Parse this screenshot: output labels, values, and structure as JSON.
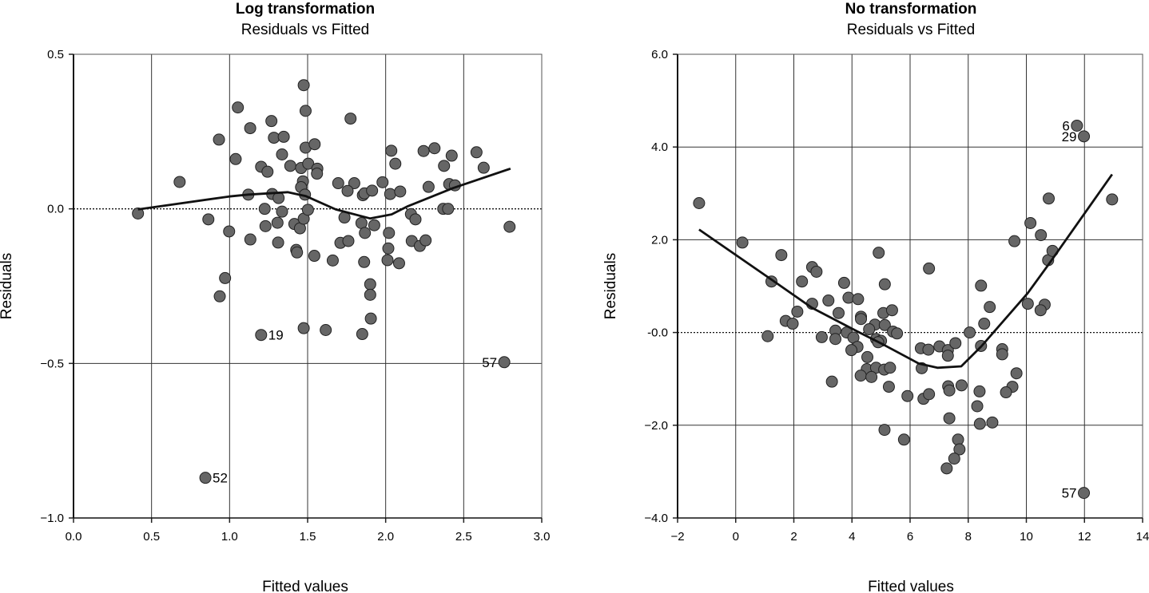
{
  "chart_data": [
    {
      "type": "scatter",
      "title": "Log transformation",
      "subtitle": "Residuals vs Fitted",
      "xlabel": "Fitted values",
      "ylabel": "Residuals",
      "xlim": [
        0,
        3
      ],
      "ylim": [
        -1,
        0.5
      ],
      "xticks": [
        0,
        0.5,
        1,
        1.5,
        2,
        2.5,
        3
      ],
      "xtick_labels": [
        "0.0",
        "0.5",
        "1.0",
        "1.5",
        "2.0",
        "2.5",
        "3.0"
      ],
      "yticks": [
        0.5,
        0,
        -0.5,
        -1
      ],
      "ytick_labels": [
        "0.5",
        "0.0",
        "−0.5",
        "−1.0"
      ],
      "grid": true,
      "reference_line": 0,
      "points": [
        [
          0.413,
          -0.015
        ],
        [
          0.68,
          0.087
        ],
        [
          0.932,
          0.224
        ],
        [
          0.864,
          -0.034
        ],
        [
          0.997,
          -0.073
        ],
        [
          0.971,
          -0.224
        ],
        [
          0.937,
          -0.283
        ],
        [
          1.053,
          0.328
        ],
        [
          1.132,
          0.261
        ],
        [
          1.039,
          0.161
        ],
        [
          1.12,
          0.046
        ],
        [
          1.133,
          -0.099
        ],
        [
          1.202,
          0.136
        ],
        [
          1.243,
          0.12
        ],
        [
          1.268,
          0.284
        ],
        [
          1.284,
          0.23
        ],
        [
          1.347,
          0.233
        ],
        [
          1.336,
          0.176
        ],
        [
          1.389,
          0.139
        ],
        [
          1.273,
          0.048
        ],
        [
          1.314,
          0.035
        ],
        [
          1.225,
          0.0
        ],
        [
          1.336,
          -0.009
        ],
        [
          1.23,
          -0.056
        ],
        [
          1.307,
          -0.045
        ],
        [
          1.311,
          -0.109
        ],
        [
          1.415,
          -0.049
        ],
        [
          1.451,
          -0.063
        ],
        [
          1.475,
          -0.032
        ],
        [
          1.427,
          -0.133
        ],
        [
          1.432,
          -0.141
        ],
        [
          1.543,
          -0.152
        ],
        [
          1.458,
          0.132
        ],
        [
          1.487,
          0.198
        ],
        [
          1.545,
          0.209
        ],
        [
          1.504,
          0.146
        ],
        [
          1.562,
          0.13
        ],
        [
          1.56,
          0.114
        ],
        [
          1.47,
          0.089
        ],
        [
          1.458,
          0.07
        ],
        [
          1.483,
          0.046
        ],
        [
          1.502,
          -0.003
        ],
        [
          1.475,
          0.4
        ],
        [
          1.487,
          0.317
        ],
        [
          1.775,
          0.292
        ],
        [
          1.696,
          0.083
        ],
        [
          1.799,
          0.083
        ],
        [
          1.756,
          0.058
        ],
        [
          1.854,
          0.044
        ],
        [
          1.864,
          0.05
        ],
        [
          1.913,
          0.059
        ],
        [
          1.98,
          0.086
        ],
        [
          2.036,
          0.188
        ],
        [
          2.062,
          0.146
        ],
        [
          2.029,
          0.048
        ],
        [
          2.093,
          0.056
        ],
        [
          1.736,
          -0.028
        ],
        [
          1.845,
          -0.046
        ],
        [
          1.927,
          -0.053
        ],
        [
          1.867,
          -0.078
        ],
        [
          1.71,
          -0.11
        ],
        [
          1.761,
          -0.104
        ],
        [
          1.661,
          -0.167
        ],
        [
          1.862,
          -0.172
        ],
        [
          2.021,
          -0.078
        ],
        [
          2.017,
          -0.128
        ],
        [
          2.012,
          -0.166
        ],
        [
          2.086,
          -0.176
        ],
        [
          1.901,
          -0.244
        ],
        [
          1.901,
          -0.278
        ],
        [
          1.905,
          -0.355
        ],
        [
          1.85,
          -0.405
        ],
        [
          1.616,
          -0.392
        ],
        [
          1.475,
          -0.386
        ],
        [
          2.162,
          -0.017
        ],
        [
          2.191,
          -0.034
        ],
        [
          2.167,
          -0.104
        ],
        [
          2.219,
          -0.12
        ],
        [
          2.256,
          -0.102
        ],
        [
          2.275,
          0.071
        ],
        [
          2.243,
          0.187
        ],
        [
          2.313,
          0.196
        ],
        [
          2.374,
          0.139
        ],
        [
          2.423,
          0.172
        ],
        [
          2.407,
          0.08
        ],
        [
          2.444,
          0.076
        ],
        [
          2.369,
          0.0
        ],
        [
          2.4,
          0.0
        ],
        [
          2.582,
          0.183
        ],
        [
          2.628,
          0.133
        ],
        [
          2.794,
          -0.058
        ]
      ],
      "labeled_points": [
        {
          "label": "19",
          "x": 1.202,
          "y": -0.408,
          "side": "right"
        },
        {
          "label": "52",
          "x": 0.845,
          "y": -0.87,
          "side": "right"
        },
        {
          "label": "57",
          "x": 2.76,
          "y": -0.496,
          "side": "left"
        }
      ],
      "smooth_line": [
        [
          0.413,
          -0.002
        ],
        [
          0.997,
          0.04
        ],
        [
          1.12,
          0.046
        ],
        [
          1.372,
          0.054
        ],
        [
          1.49,
          0.041
        ],
        [
          1.68,
          -0.002
        ],
        [
          1.9,
          -0.031
        ],
        [
          2.038,
          -0.018
        ],
        [
          2.14,
          0.008
        ],
        [
          2.431,
          0.067
        ],
        [
          2.8,
          0.13
        ]
      ]
    },
    {
      "type": "scatter",
      "title": "No transformation",
      "subtitle": "Residuals vs Fitted",
      "xlabel": "Fitted values",
      "ylabel": "Residuals",
      "xlim": [
        -2,
        14
      ],
      "ylim": [
        -4,
        6
      ],
      "xticks": [
        -2,
        0,
        2,
        4,
        6,
        8,
        10,
        12,
        14
      ],
      "xtick_labels": [
        "−2",
        "0",
        "2",
        "4",
        "6",
        "8",
        "10",
        "12",
        "14"
      ],
      "yticks": [
        6,
        4,
        2,
        0,
        -2,
        -4
      ],
      "ytick_labels": [
        "6.0",
        "4.0",
        "2.0",
        "-0.0",
        "−2.0",
        "−4.0"
      ],
      "grid": true,
      "reference_line": 0,
      "points": [
        [
          0.23,
          1.94
        ],
        [
          1.57,
          1.67
        ],
        [
          1.23,
          1.1
        ],
        [
          2.28,
          1.1
        ],
        [
          2.63,
          1.41
        ],
        [
          2.78,
          1.31
        ],
        [
          2.63,
          0.62
        ],
        [
          2.12,
          0.45
        ],
        [
          1.72,
          0.25
        ],
        [
          1.96,
          0.19
        ],
        [
          1.1,
          -0.08
        ],
        [
          3.19,
          0.69
        ],
        [
          3.73,
          1.07
        ],
        [
          3.88,
          0.75
        ],
        [
          4.21,
          0.72
        ],
        [
          3.54,
          0.42
        ],
        [
          4.31,
          0.34
        ],
        [
          4.31,
          0.29
        ],
        [
          4.92,
          1.72
        ],
        [
          5.13,
          1.04
        ],
        [
          5.08,
          0.42
        ],
        [
          5.38,
          0.48
        ],
        [
          4.79,
          0.17
        ],
        [
          5.13,
          0.16
        ],
        [
          4.59,
          0.07
        ],
        [
          5.41,
          0.02
        ],
        [
          5.55,
          -0.02
        ],
        [
          3.43,
          0.04
        ],
        [
          3.43,
          -0.14
        ],
        [
          2.96,
          -0.1
        ],
        [
          3.82,
          0.0
        ],
        [
          4.05,
          -0.11
        ],
        [
          4.83,
          -0.14
        ],
        [
          5.0,
          -0.18
        ],
        [
          4.9,
          -0.21
        ],
        [
          4.19,
          -0.31
        ],
        [
          3.98,
          -0.38
        ],
        [
          4.53,
          -0.53
        ],
        [
          4.51,
          -0.79
        ],
        [
          4.83,
          -0.76
        ],
        [
          5.11,
          -0.8
        ],
        [
          5.31,
          -0.76
        ],
        [
          4.3,
          -0.93
        ],
        [
          4.67,
          -0.96
        ],
        [
          3.31,
          -1.06
        ],
        [
          5.27,
          -1.17
        ],
        [
          5.91,
          -1.37
        ],
        [
          6.46,
          -1.43
        ],
        [
          6.65,
          -1.33
        ],
        [
          6.4,
          -0.77
        ],
        [
          6.37,
          -0.34
        ],
        [
          6.63,
          -0.37
        ],
        [
          7.01,
          -0.3
        ],
        [
          7.3,
          -0.38
        ],
        [
          7.3,
          -0.5
        ],
        [
          7.56,
          -0.23
        ],
        [
          8.05,
          0.0
        ],
        [
          6.65,
          1.38
        ],
        [
          8.44,
          1.01
        ],
        [
          8.74,
          0.55
        ],
        [
          8.55,
          0.19
        ],
        [
          8.44,
          -0.29
        ],
        [
          9.17,
          -0.36
        ],
        [
          9.17,
          -0.47
        ],
        [
          9.66,
          -0.88
        ],
        [
          9.52,
          -1.17
        ],
        [
          9.3,
          -1.29
        ],
        [
          8.39,
          -1.27
        ],
        [
          8.31,
          -1.59
        ],
        [
          8.4,
          -1.97
        ],
        [
          8.83,
          -1.94
        ],
        [
          7.77,
          -1.14
        ],
        [
          7.31,
          -1.16
        ],
        [
          7.35,
          -1.25
        ],
        [
          7.35,
          -1.85
        ],
        [
          7.65,
          -2.31
        ],
        [
          7.7,
          -2.52
        ],
        [
          7.52,
          -2.72
        ],
        [
          7.26,
          -2.93
        ],
        [
          5.79,
          -2.31
        ],
        [
          5.12,
          -2.1
        ],
        [
          10.05,
          0.62
        ],
        [
          10.63,
          0.6
        ],
        [
          10.49,
          0.48
        ],
        [
          10.75,
          1.56
        ],
        [
          10.9,
          1.76
        ],
        [
          9.59,
          1.97
        ],
        [
          -1.26,
          2.79
        ],
        [
          10.14,
          2.36
        ],
        [
          10.5,
          2.1
        ],
        [
          10.77,
          2.89
        ],
        [
          12.95,
          2.87
        ]
      ],
      "labeled_points": [
        {
          "label": "6",
          "x": 11.74,
          "y": 4.46,
          "side": "left"
        },
        {
          "label": "29",
          "x": 11.98,
          "y": 4.23,
          "side": "left"
        },
        {
          "label": "57",
          "x": 11.98,
          "y": -3.46,
          "side": "left"
        }
      ],
      "smooth_line": [
        [
          -1.26,
          2.22
        ],
        [
          -0.756,
          2.0
        ],
        [
          1.234,
          1.14
        ],
        [
          2.63,
          0.53
        ],
        [
          4.19,
          0.02
        ],
        [
          5.11,
          -0.27
        ],
        [
          6.3,
          -0.67
        ],
        [
          6.94,
          -0.76
        ],
        [
          7.76,
          -0.73
        ],
        [
          8.45,
          -0.3
        ],
        [
          10.05,
          0.85
        ],
        [
          10.78,
          1.48
        ],
        [
          12.95,
          3.41
        ]
      ]
    }
  ]
}
